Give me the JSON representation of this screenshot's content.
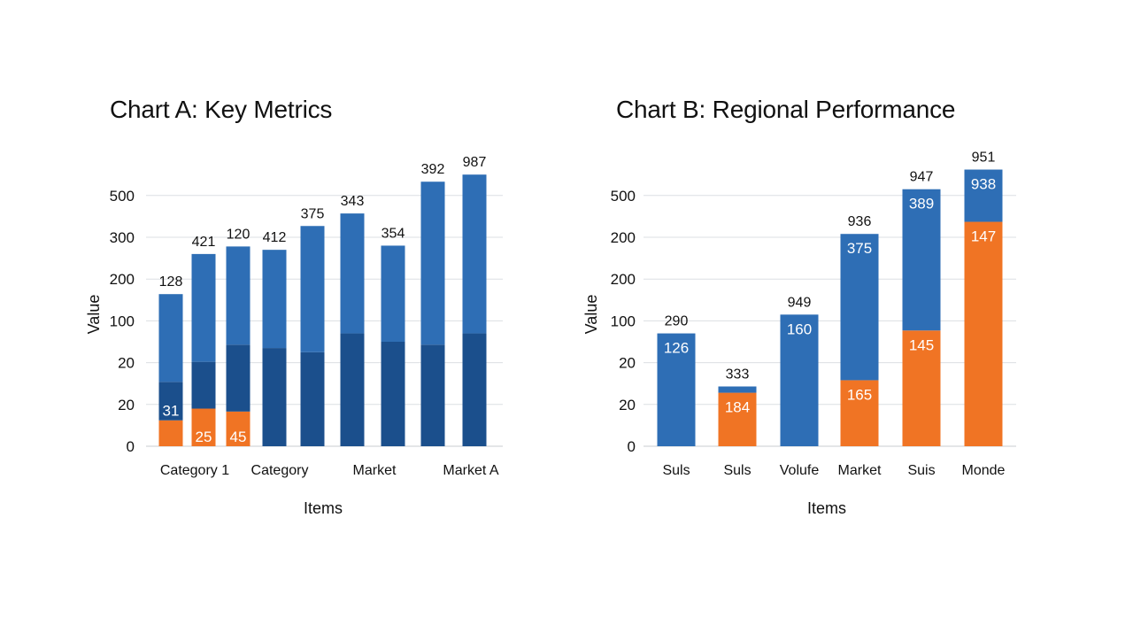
{
  "chart_data": [
    {
      "type": "bar",
      "stacked": true,
      "title": "Chart A: Key Metrics",
      "xlabel": "Items",
      "ylabel": "Value",
      "y_tick_labels": [
        "0",
        "20",
        "20",
        "100",
        "200",
        "300",
        "500"
      ],
      "ylim": [
        0,
        6
      ],
      "grid": true,
      "colors": {
        "light": "#2e6eb5",
        "dark": "#1b4f8c",
        "orange": "#f07424"
      },
      "categories": [
        "Category 1",
        "",
        "",
        "Category",
        "",
        "Market",
        "",
        "",
        "Market A"
      ],
      "category_labels_shown": [
        "Category 1",
        "Category",
        "Market",
        "Market A"
      ],
      "bars": [
        {
          "segments": [
            {
              "color": "orange",
              "value": 0.62
            },
            {
              "color": "dark",
              "value": 0.92,
              "label": "31"
            },
            {
              "color": "light",
              "value": 2.1
            }
          ],
          "top_label": "128"
        },
        {
          "segments": [
            {
              "color": "orange",
              "value": 0.9,
              "label": "25"
            },
            {
              "color": "dark",
              "value": 1.12
            },
            {
              "color": "light",
              "value": 2.58
            }
          ],
          "top_label": "421"
        },
        {
          "segments": [
            {
              "color": "orange",
              "value": 0.83,
              "label": "45"
            },
            {
              "color": "dark",
              "value": 1.6
            },
            {
              "color": "light",
              "value": 2.35
            }
          ],
          "top_label": "120"
        },
        {
          "segments": [
            {
              "color": "dark",
              "value": 2.35
            },
            {
              "color": "light",
              "value": 2.35
            }
          ],
          "top_label": "412"
        },
        {
          "segments": [
            {
              "color": "dark",
              "value": 2.25
            },
            {
              "color": "light",
              "value": 3.02
            }
          ],
          "top_label": "375"
        },
        {
          "segments": [
            {
              "color": "dark",
              "value": 2.7
            },
            {
              "color": "light",
              "value": 2.87
            }
          ],
          "top_label": "343"
        },
        {
          "segments": [
            {
              "color": "dark",
              "value": 2.5
            },
            {
              "color": "light",
              "value": 2.3
            }
          ],
          "top_label": "354"
        },
        {
          "segments": [
            {
              "color": "dark",
              "value": 2.43
            },
            {
              "color": "light",
              "value": 3.9
            }
          ],
          "top_label": "392"
        },
        {
          "segments": [
            {
              "color": "dark",
              "value": 2.7
            },
            {
              "color": "light",
              "value": 3.8
            }
          ],
          "top_label": "987"
        }
      ]
    },
    {
      "type": "bar",
      "stacked": true,
      "title": "Chart B: Regional Performance",
      "xlabel": "Items",
      "ylabel": "Value",
      "y_tick_labels": [
        "0",
        "20",
        "20",
        "100",
        "200",
        "200",
        "500"
      ],
      "ylim": [
        0,
        6
      ],
      "grid": true,
      "colors": {
        "light": "#2e6eb5",
        "dark": "#1b4f8c",
        "orange": "#f07424"
      },
      "categories": [
        "Suls",
        "Suls",
        "Volufe",
        "Market",
        "Suis",
        "Monde"
      ],
      "bars": [
        {
          "segments": [
            {
              "color": "light",
              "value": 2.7,
              "label": "126"
            }
          ],
          "top_label": "290"
        },
        {
          "segments": [
            {
              "color": "orange",
              "value": 1.28,
              "label": "184"
            },
            {
              "color": "light",
              "value": 0.15
            }
          ],
          "top_label": "333"
        },
        {
          "segments": [
            {
              "color": "light",
              "value": 3.15,
              "label": "160"
            }
          ],
          "top_label": "949"
        },
        {
          "segments": [
            {
              "color": "orange",
              "value": 1.58,
              "label": "165"
            },
            {
              "color": "light",
              "value": 3.5,
              "label": "375"
            }
          ],
          "top_label": "936"
        },
        {
          "segments": [
            {
              "color": "orange",
              "value": 2.77,
              "label": "145"
            },
            {
              "color": "light",
              "value": 3.38,
              "label": "389"
            }
          ],
          "top_label": "947"
        },
        {
          "segments": [
            {
              "color": "orange",
              "value": 5.37,
              "label": "147"
            },
            {
              "color": "light",
              "value": 1.25,
              "label": "938"
            }
          ],
          "top_label": "951"
        }
      ]
    }
  ]
}
